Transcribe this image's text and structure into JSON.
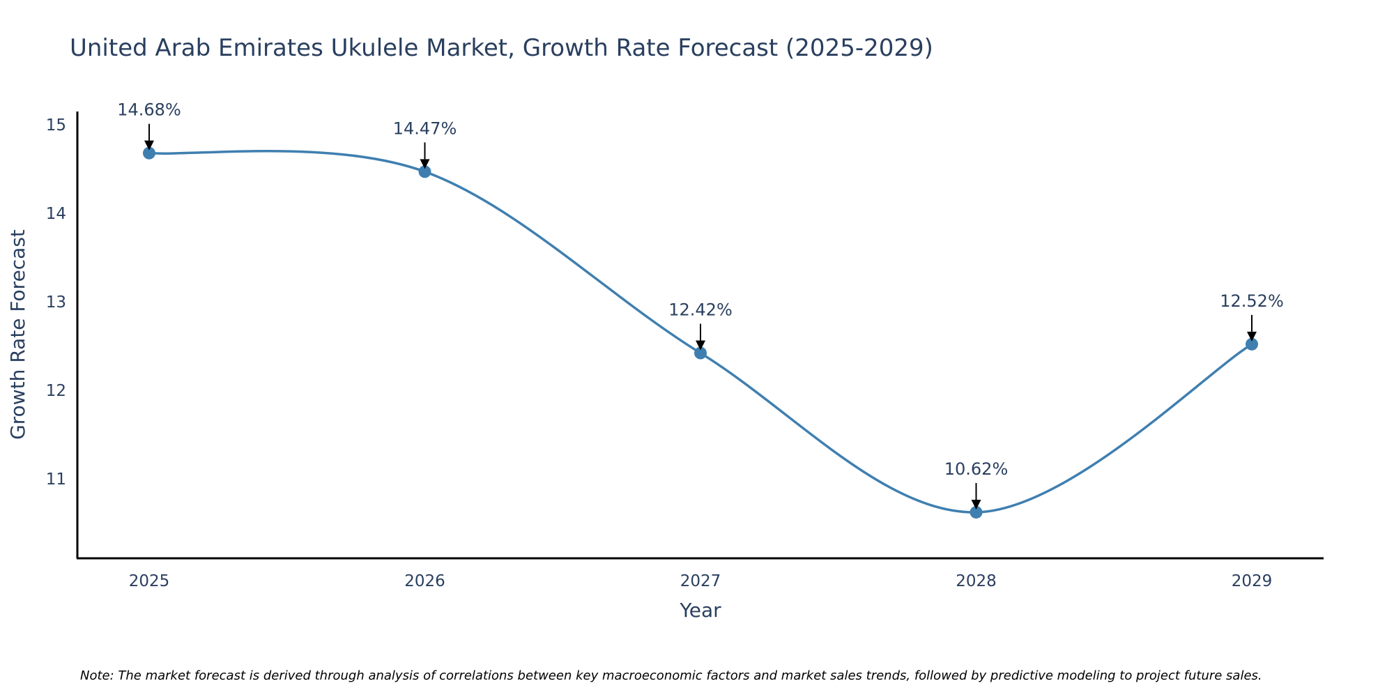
{
  "chart_data": {
    "type": "line",
    "title": "United Arab Emirates Ukulele Market, Growth Rate Forecast (2025-2029)",
    "xlabel": "Year",
    "ylabel": "Growth Rate Forecast",
    "categories": [
      "2025",
      "2026",
      "2027",
      "2028",
      "2029"
    ],
    "values": [
      14.68,
      14.47,
      12.42,
      10.62,
      12.52
    ],
    "data_labels": [
      "14.68%",
      "14.47%",
      "12.42%",
      "10.62%",
      "12.52%"
    ],
    "yticks": [
      11,
      12,
      13,
      14,
      15
    ],
    "ytick_labels": [
      "11",
      "12",
      "13",
      "14",
      "15"
    ],
    "ylim": [
      10.1,
      15.15
    ],
    "grid": false,
    "line_shape": "spline",
    "line_color": "#3f7fb0",
    "marker_color": "#3f7fb0",
    "axis_color": "#000000",
    "text_color": "#2a3f5f",
    "note": "Note: The market forecast is derived through analysis of correlations between key macroeconomic factors and market sales trends, followed by predictive modeling to project future sales."
  }
}
